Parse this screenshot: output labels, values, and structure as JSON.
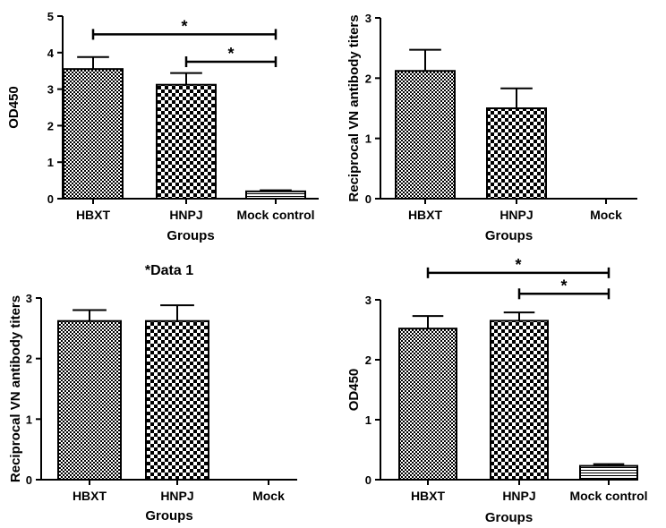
{
  "chart_data": [
    {
      "type": "bar",
      "title": "",
      "xlabel": "Groups",
      "ylabel": "OD450",
      "ylim": [
        0,
        5
      ],
      "yticks": [
        "0",
        "1",
        "2",
        "3",
        "4",
        "5"
      ],
      "categories": [
        "HBXT",
        "HNPJ",
        "Mock control"
      ],
      "values": [
        3.55,
        3.12,
        0.2
      ],
      "errors": [
        0.33,
        0.32,
        0.03
      ],
      "patterns": [
        "fine-check",
        "coarse-check",
        "hlines"
      ],
      "significance": [
        {
          "from": 0,
          "to": 2,
          "label": "*",
          "level": 4.5
        },
        {
          "from": 1,
          "to": 2,
          "label": "*",
          "level": 3.75
        }
      ]
    },
    {
      "type": "bar",
      "title": "",
      "xlabel": "Groups",
      "ylabel": "Reciprocal VN antibody titers",
      "ylim": [
        0,
        3
      ],
      "yticks": [
        "0",
        "1",
        "2",
        "3"
      ],
      "categories": [
        "HBXT",
        "HNPJ",
        "Mock"
      ],
      "values": [
        2.12,
        1.5,
        0
      ],
      "errors": [
        0.35,
        0.33,
        0
      ],
      "patterns": [
        "fine-check",
        "coarse-check",
        "none"
      ],
      "significance": []
    },
    {
      "type": "bar",
      "title": "*Data 1",
      "xlabel": "Groups",
      "ylabel": "Reciprocal VN antibody titers",
      "ylim": [
        0,
        3
      ],
      "yticks": [
        "0",
        "1",
        "2",
        "3"
      ],
      "categories": [
        "HBXT",
        "HNPJ",
        "Mock"
      ],
      "values": [
        2.62,
        2.62,
        0
      ],
      "errors": [
        0.18,
        0.26,
        0
      ],
      "patterns": [
        "fine-check",
        "coarse-check",
        "none"
      ],
      "significance": []
    },
    {
      "type": "bar",
      "title": "",
      "xlabel": "Groups",
      "ylabel": "OD450",
      "ylim": [
        0,
        3
      ],
      "yticks": [
        "0",
        "1",
        "2",
        "3"
      ],
      "categories": [
        "HBXT",
        "HNPJ",
        "Mock control"
      ],
      "values": [
        2.52,
        2.65,
        0.23
      ],
      "errors": [
        0.21,
        0.14,
        0.03
      ],
      "patterns": [
        "fine-check",
        "coarse-check",
        "hlines"
      ],
      "significance": [
        {
          "from": 0,
          "to": 2,
          "label": "*",
          "level": 3.45
        },
        {
          "from": 1,
          "to": 2,
          "label": "*",
          "level": 3.1
        }
      ]
    }
  ]
}
